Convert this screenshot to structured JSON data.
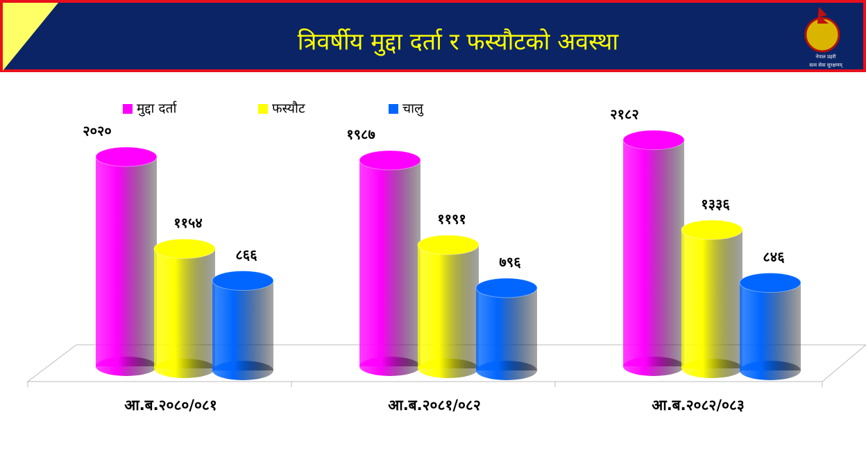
{
  "header": {
    "logo_top": "नेपाल प्रहरी",
    "logo_bottom": "सत्य सेवा सुरक्षणम्"
  },
  "chart_data": {
    "type": "bar3d",
    "title": "त्रिवर्षीय मुद्दा दर्ता र फस्यौटको अवस्था",
    "categories": [
      "आ.ब.२०८०/०८१",
      "आ.ब.२०८१/०८२",
      "आ.ब.२०८२/०८३"
    ],
    "series": [
      {
        "name": "मुद्दा दर्ता",
        "color": "#ff00ff",
        "values": [
          2020,
          1987,
          2182
        ],
        "value_labels": [
          "२०२०",
          "१९८७",
          "२१८२"
        ]
      },
      {
        "name": "फस्यौट",
        "color": "#ffff00",
        "values": [
          1154,
          1191,
          1336
        ],
        "value_labels": [
          "११५४",
          "११९१",
          "१३३६"
        ]
      },
      {
        "name": "चालु",
        "color": "#0066ff",
        "values": [
          866,
          796,
          846
        ],
        "value_labels": [
          "८६६",
          "७९६",
          "८४६"
        ]
      }
    ]
  }
}
